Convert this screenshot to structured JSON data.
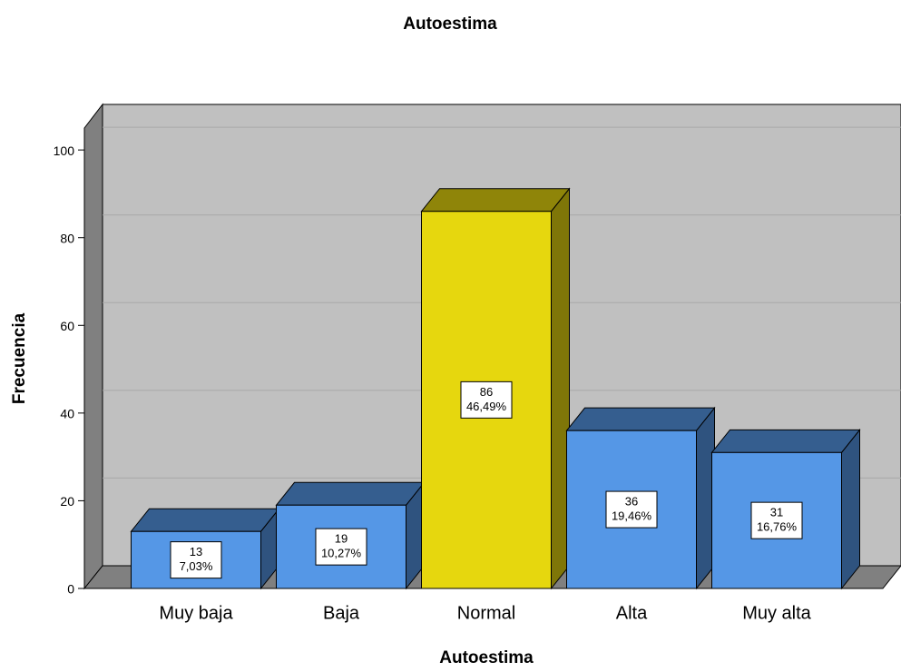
{
  "chart_data": {
    "type": "bar3d",
    "title": "Autoestima",
    "x_label": "Autoestima",
    "y_label": "Frecuencia",
    "categories": [
      "Muy baja",
      "Baja",
      "Normal",
      "Alta",
      "Muy alta"
    ],
    "values": [
      13,
      19,
      86,
      36,
      31
    ],
    "percent_labels": [
      "7,03%",
      "10,27%",
      "46,49%",
      "19,46%",
      "16,76%"
    ],
    "colors": [
      "#5597e6",
      "#5597e6",
      "#e6d70e",
      "#5597e6",
      "#5597e6"
    ],
    "ylim": [
      0,
      105
    ],
    "yticks": [
      0,
      20,
      40,
      60,
      80,
      100
    ],
    "grid": true
  }
}
